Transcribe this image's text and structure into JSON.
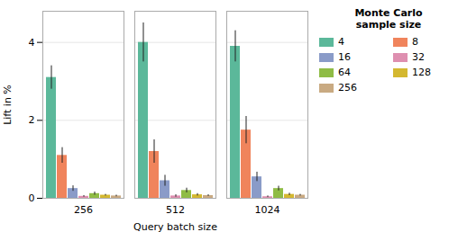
{
  "chart_data": {
    "type": "bar",
    "title": "",
    "xlabel": "Query batch size",
    "ylabel": "Lift in %",
    "categories": [
      "256",
      "512",
      "1024"
    ],
    "series": [
      {
        "name": "4",
        "color": "#5bb89a",
        "values": [
          3.1,
          4.0,
          3.9
        ],
        "errors": [
          0.3,
          0.5,
          0.4
        ]
      },
      {
        "name": "8",
        "color": "#f0845c",
        "values": [
          1.1,
          1.2,
          1.75
        ],
        "errors": [
          0.2,
          0.3,
          0.35
        ]
      },
      {
        "name": "16",
        "color": "#8a9bc8",
        "values": [
          0.25,
          0.45,
          0.55
        ],
        "errors": [
          0.07,
          0.14,
          0.12
        ]
      },
      {
        "name": "32",
        "color": "#de8fb0",
        "values": [
          0.05,
          0.06,
          0.04
        ],
        "errors": [
          0.02,
          0.03,
          0.02
        ]
      },
      {
        "name": "64",
        "color": "#8fbc45",
        "values": [
          0.12,
          0.2,
          0.25
        ],
        "errors": [
          0.04,
          0.06,
          0.06
        ]
      },
      {
        "name": "128",
        "color": "#d4b830",
        "values": [
          0.08,
          0.09,
          0.1
        ],
        "errors": [
          0.02,
          0.03,
          0.03
        ]
      },
      {
        "name": "256",
        "color": "#c9aa82",
        "values": [
          0.06,
          0.07,
          0.08
        ],
        "errors": [
          0.02,
          0.02,
          0.02
        ]
      }
    ],
    "legend_title": "Monte Carlo\nsample size",
    "legend": "right",
    "ylim": [
      0,
      4.8
    ],
    "yticks": [
      0,
      2,
      4
    ],
    "grid": true
  }
}
